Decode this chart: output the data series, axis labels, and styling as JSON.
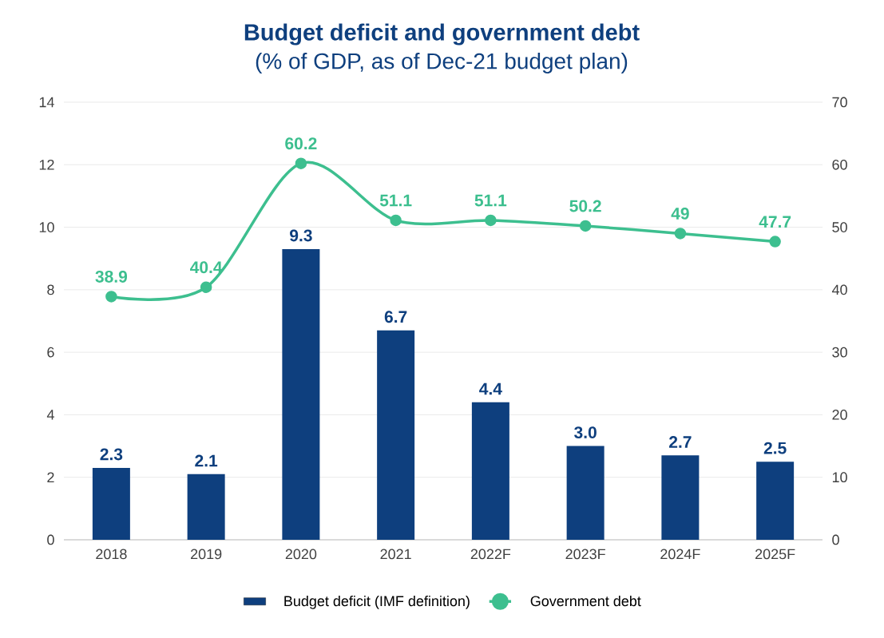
{
  "chart_data": {
    "type": "bar",
    "title": "Budget deficit and government debt",
    "subtitle": "(% of GDP, as of Dec-21 budget plan)",
    "categories": [
      "2018",
      "2019",
      "2020",
      "2021",
      "2022F",
      "2023F",
      "2024F",
      "2025F"
    ],
    "series": [
      {
        "name": "Budget deficit (IMF definition)",
        "color": "#0e3f7e",
        "values": [
          2.3,
          2.1,
          9.3,
          6.7,
          4.4,
          3.0,
          2.7,
          2.5
        ],
        "value_labels": [
          "2.3",
          "2.1",
          "9.3",
          "6.7",
          "4.4",
          "3.0",
          "2.7",
          "2.5"
        ]
      },
      {
        "name": "Government debt",
        "type": "line",
        "axis": "y2",
        "color": "#3dbf8f",
        "values": [
          38.9,
          40.4,
          60.2,
          51.1,
          51.1,
          50.2,
          49,
          47.7
        ],
        "value_labels": [
          "38.9",
          "40.4",
          "60.2",
          "51.1",
          "51.1",
          "50.2",
          "49",
          "47.7"
        ]
      }
    ],
    "ylim": [
      0,
      14
    ],
    "yticks": [
      0,
      2,
      4,
      6,
      8,
      10,
      12,
      14
    ],
    "y2lim": [
      0,
      70
    ],
    "y2ticks": [
      0,
      10,
      20,
      30,
      40,
      50,
      60,
      70
    ],
    "grid": "y",
    "legend": "bottom",
    "marker": "circle",
    "line_style": "solid"
  }
}
